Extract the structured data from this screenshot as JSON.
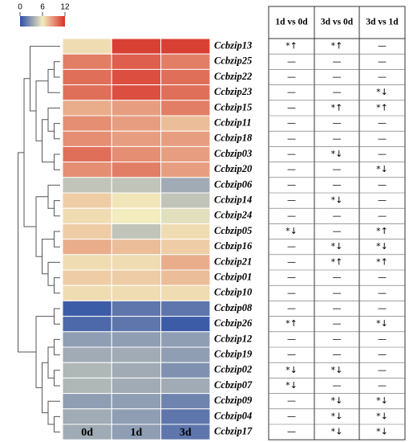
{
  "chart_data": {
    "type": "heatmap",
    "x_categories": [
      "0d",
      "1d",
      "3d"
    ],
    "y_categories": [
      "Ccbzip13",
      "Ccbzip25",
      "Ccbzip22",
      "Ccbzip23",
      "Ccbzip15",
      "Ccbzip11",
      "Ccbzip18",
      "Ccbzip03",
      "Ccbzip20",
      "Ccbzip06",
      "Ccbzip14",
      "Ccbzip24",
      "Ccbzip05",
      "Ccbzip16",
      "Ccbzip21",
      "Ccbzip01",
      "Ccbzip10",
      "Ccbzip08",
      "Ccbzip26",
      "Ccbzip12",
      "Ccbzip19",
      "Ccbzip02",
      "Ccbzip07",
      "Ccbzip09",
      "Ccbzip04",
      "Ccbzip17"
    ],
    "values": [
      [
        6.5,
        11.5,
        11.5
      ],
      [
        9.5,
        10.5,
        9.5
      ],
      [
        10,
        11,
        10
      ],
      [
        10,
        11,
        10
      ],
      [
        8,
        8.5,
        9.5
      ],
      [
        9,
        8.5,
        7.5
      ],
      [
        9,
        8.5,
        8.5
      ],
      [
        10,
        9,
        8.5
      ],
      [
        9,
        9.5,
        8.5
      ],
      [
        4.5,
        4.5,
        3.5
      ],
      [
        7,
        6.2,
        4.5
      ],
      [
        6.5,
        6,
        5.5
      ],
      [
        7,
        4.5,
        6.5
      ],
      [
        8,
        7.5,
        7
      ],
      [
        6.5,
        6.5,
        8
      ],
      [
        7,
        7,
        7.5
      ],
      [
        6.5,
        6.5,
        6.5
      ],
      [
        0.5,
        1.5,
        1.5
      ],
      [
        1,
        1.5,
        0.5
      ],
      [
        3,
        3,
        3
      ],
      [
        3.5,
        3.5,
        3
      ],
      [
        4,
        3.5,
        2.5
      ],
      [
        4,
        3.5,
        3.5
      ],
      [
        3,
        3,
        2
      ],
      [
        3.5,
        3,
        1.5
      ],
      [
        3.5,
        3,
        1.5
      ]
    ],
    "zlim": [
      0,
      12
    ],
    "zticks": [
      0,
      6,
      12
    ],
    "colorscale": [
      "#2c4fa6",
      "#f2ecbf",
      "#d73027"
    ]
  },
  "table": {
    "header": [
      "1d vs 0d",
      "3d vs 0d",
      "3d vs 1d"
    ],
    "rows": [
      [
        "*↑",
        "*↑",
        "—"
      ],
      [
        "—",
        "—",
        "—"
      ],
      [
        "—",
        "—",
        "—"
      ],
      [
        "—",
        "—",
        "*↓"
      ],
      [
        "—",
        "*↑",
        "*↑"
      ],
      [
        "—",
        "—",
        "—"
      ],
      [
        "—",
        "—",
        "—"
      ],
      [
        "—",
        "*↓",
        "—"
      ],
      [
        "—",
        "—",
        "*↓"
      ],
      [
        "—",
        "—",
        "—"
      ],
      [
        "—",
        "*↓",
        "—"
      ],
      [
        "—",
        "—",
        "—"
      ],
      [
        "*↓",
        "—",
        "*↑"
      ],
      [
        "—",
        "*↓",
        "*↓"
      ],
      [
        "—",
        "*↑",
        "*↑"
      ],
      [
        "—",
        "—",
        "—"
      ],
      [
        "—",
        "—",
        "—"
      ],
      [
        "—",
        "—",
        "—"
      ],
      [
        "*↑",
        "—",
        "*↓"
      ],
      [
        "—",
        "—",
        "—"
      ],
      [
        "—",
        "—",
        "—"
      ],
      [
        "*↓",
        "*↓",
        "—"
      ],
      [
        "*↓",
        "—",
        "—"
      ],
      [
        "—",
        "*↓",
        "*↓"
      ],
      [
        "—",
        "*↓",
        "*↓"
      ],
      [
        "—",
        "*↓",
        "*↓"
      ]
    ]
  }
}
